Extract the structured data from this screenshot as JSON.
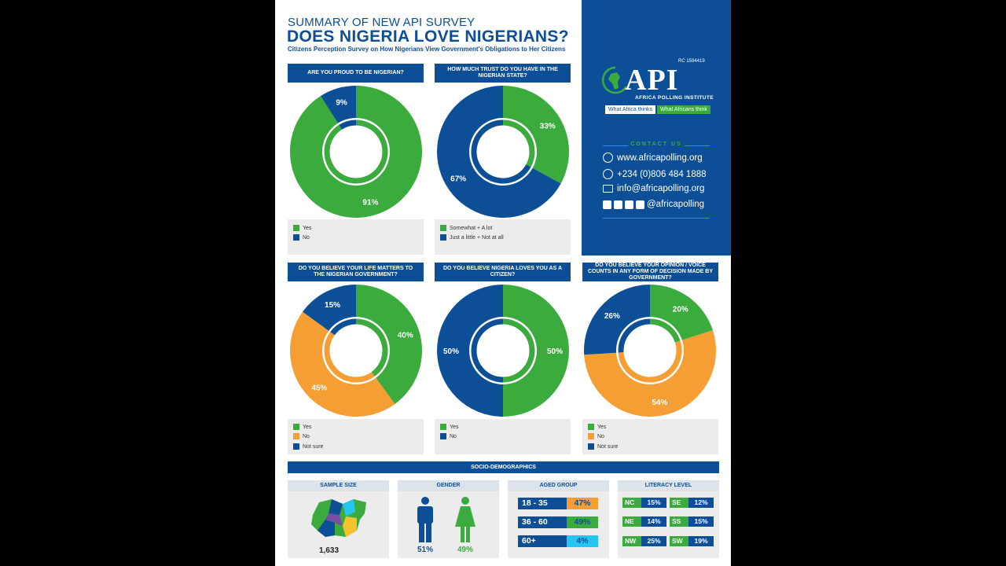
{
  "header": {
    "subtitle": "SUMMARY OF NEW API SURVEY",
    "title": "DOES NIGERIA LOVE NIGERIANS?",
    "description": "Citizens Perception Survey on How Nigerians View Government's Obligations to Her Citizens"
  },
  "brand": {
    "rc": "RC 1594419",
    "name": "API",
    "institute": "AFRICA POLLING INSTITUTE",
    "tag_left": "What Africa thinks",
    "tag_right": "What Africans think"
  },
  "contact": {
    "heading": "CONTACT US",
    "website": "www.africapolling.org",
    "phone": "+234 (0)806 484 1888",
    "email": "info@africapolling.org",
    "social": "@africapolling"
  },
  "colors": {
    "blue": "#0d4f96",
    "green": "#3aab3c",
    "orange": "#f59e33",
    "cyan": "#26c4f0"
  },
  "chart_data": [
    {
      "type": "pie",
      "title": "ARE YOU PROUD TO BE NIGERIAN?",
      "categories": [
        "Yes",
        "No"
      ],
      "values": [
        91,
        9
      ],
      "labels": [
        "91%",
        "9%"
      ],
      "colors": [
        "#3aab3c",
        "#0d4f96"
      ]
    },
    {
      "type": "pie",
      "title": "HOW MUCH TRUST DO YOU HAVE IN THE NIGERIAN STATE?",
      "categories": [
        "Somewhat + A lot",
        "Just a little + Not at all"
      ],
      "values": [
        33,
        67
      ],
      "labels": [
        "33%",
        "67%"
      ],
      "colors": [
        "#3aab3c",
        "#0d4f96"
      ]
    },
    {
      "type": "pie",
      "title": "DO YOU BELIEVE YOUR LIFE MATTERS TO THE NIGERIAN GOVERNMENT?",
      "categories": [
        "Yes",
        "No",
        "Not sure"
      ],
      "values": [
        40,
        45,
        15
      ],
      "labels": [
        "40%",
        "45%",
        "15%"
      ],
      "colors": [
        "#3aab3c",
        "#f59e33",
        "#0d4f96"
      ]
    },
    {
      "type": "pie",
      "title": "DO YOU BELIEVE NIGERIA LOVES YOU AS A CITIZEN?",
      "categories": [
        "Yes",
        "No"
      ],
      "values": [
        50,
        50
      ],
      "labels": [
        "50%",
        "50%"
      ],
      "colors": [
        "#3aab3c",
        "#0d4f96"
      ]
    },
    {
      "type": "pie",
      "title": "DO YOU BELIEVE YOUR OPINION / VOICE COUNTS IN ANY FORM OF DECISION MADE BY GOVERNMENT?",
      "categories": [
        "Yes",
        "No",
        "Not sure"
      ],
      "values": [
        20,
        54,
        26
      ],
      "labels": [
        "20%",
        "54%",
        "26%"
      ],
      "colors": [
        "#3aab3c",
        "#f59e33",
        "#0d4f96"
      ]
    }
  ],
  "socio": {
    "heading": "SOCIO-DEMOGRAPHICS",
    "sample": {
      "title": "SAMPLE SIZE",
      "value": "1,633"
    },
    "gender": {
      "title": "GENDER",
      "male": "51%",
      "female": "49%"
    },
    "age": {
      "title": "AGED GROUP",
      "rows": [
        {
          "label": "18 - 35",
          "value": "47%",
          "color": "#f59e33"
        },
        {
          "label": "36 - 60",
          "value": "49%",
          "color": "#3aab3c"
        },
        {
          "label": "60+",
          "value": "4%",
          "color": "#26c4f0"
        }
      ]
    },
    "literacy": {
      "title": "LITERACY LEVEL",
      "cells": [
        {
          "code": "NC",
          "value": "15%"
        },
        {
          "code": "SE",
          "value": "12%"
        },
        {
          "code": "NE",
          "value": "14%"
        },
        {
          "code": "SS",
          "value": "15%"
        },
        {
          "code": "NW",
          "value": "25%"
        },
        {
          "code": "SW",
          "value": "19%"
        }
      ]
    }
  }
}
